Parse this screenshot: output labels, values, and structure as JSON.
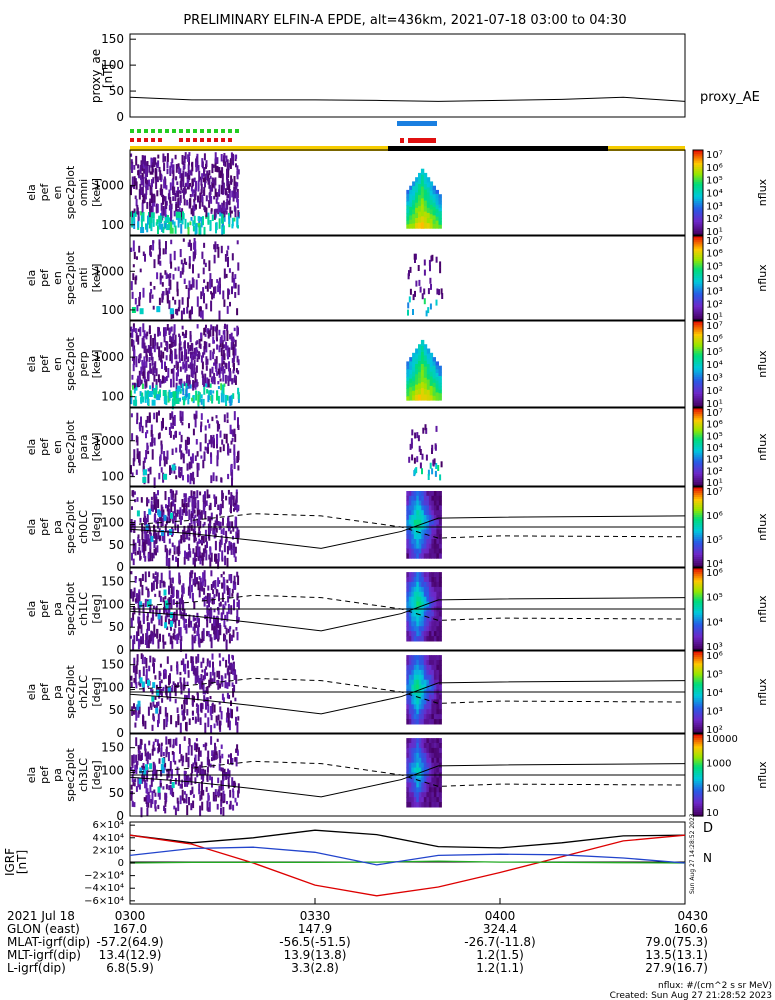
{
  "title": "PRELIMINARY ELFIN-A EPDE, alt=436km, 2021-07-18 03:00 to 04:30",
  "colors": {
    "ae_line": "#000000",
    "green_bar": "#22cc22",
    "red_bar": "#e01010",
    "blue_bar": "#1a7fe0",
    "status_yellow": "#f5cc00",
    "status_black": "#000000",
    "igrf_d": "#dd0000",
    "igrf_n": "#22aa22",
    "igrf_e": "#2244cc",
    "igrf_total": "#000000"
  },
  "chart_data": {
    "type": "heatmap",
    "time_range_min": [
      0,
      90
    ],
    "panels": [
      {
        "id": "proxy_ae",
        "kind": "line",
        "ylabel": [
          "proxy_ae",
          "[nT]"
        ],
        "side_label": "proxy_AE",
        "yticks": [
          "150",
          "100",
          "50",
          "0"
        ],
        "ylim": [
          0,
          160
        ],
        "x_min": [
          0,
          10,
          20,
          30,
          40,
          50,
          60,
          70,
          80,
          90
        ],
        "y_nT": [
          38,
          33,
          33,
          33,
          32,
          30,
          32,
          34,
          38,
          30
        ]
      },
      {
        "id": "omni",
        "kind": "spec_energy",
        "ylabel": [
          "ela",
          "pef",
          "en",
          "spec2plot",
          "omni",
          "[keV]"
        ],
        "yticks": [
          "1000",
          "100"
        ],
        "cbar_ticks": [
          "10⁷",
          "10⁶",
          "10⁵",
          "10⁴",
          "10³",
          "10²",
          "10¹"
        ],
        "cbar_label": "nflux"
      },
      {
        "id": "anti",
        "kind": "spec_energy",
        "ylabel": [
          "ela",
          "pef",
          "en",
          "spec2plot",
          "anti",
          "[keV]"
        ],
        "yticks": [
          "1000",
          "100"
        ],
        "cbar_ticks": [
          "10⁷",
          "10⁶",
          "10⁵",
          "10⁴",
          "10³",
          "10²",
          "10¹"
        ],
        "cbar_label": "nflux"
      },
      {
        "id": "perp",
        "kind": "spec_energy",
        "ylabel": [
          "ela",
          "pef",
          "en",
          "spec2plot",
          "perp",
          "[keV]"
        ],
        "yticks": [
          "1000",
          "100"
        ],
        "cbar_ticks": [
          "10⁷",
          "10⁶",
          "10⁵",
          "10⁴",
          "10³",
          "10²",
          "10¹"
        ],
        "cbar_label": "nflux"
      },
      {
        "id": "para",
        "kind": "spec_energy",
        "ylabel": [
          "ela",
          "pef",
          "en",
          "spec2plot",
          "para",
          "[keV]"
        ],
        "yticks": [
          "1000",
          "100"
        ],
        "cbar_ticks": [
          "10⁷",
          "10⁶",
          "10⁵",
          "10⁴",
          "10³",
          "10²",
          "10¹"
        ],
        "cbar_label": "nflux"
      },
      {
        "id": "ch0LC",
        "kind": "spec_pa",
        "ylabel": [
          "ela",
          "pef",
          "pa",
          "spec2plot",
          "ch0LC",
          "[deg]"
        ],
        "yticks": [
          "150",
          "100",
          "50",
          "0"
        ],
        "cbar_ticks": [
          "10⁷",
          "10⁶",
          "10⁵",
          "10⁴"
        ],
        "cbar_label": "nflux"
      },
      {
        "id": "ch1LC",
        "kind": "spec_pa",
        "ylabel": [
          "ela",
          "pef",
          "pa",
          "spec2plot",
          "ch1LC",
          "[deg]"
        ],
        "yticks": [
          "150",
          "100",
          "50",
          "0"
        ],
        "cbar_ticks": [
          "10⁶",
          "10⁵",
          "10⁴",
          "10³"
        ],
        "cbar_label": "nflux"
      },
      {
        "id": "ch2LC",
        "kind": "spec_pa",
        "ylabel": [
          "ela",
          "pef",
          "pa",
          "spec2plot",
          "ch2LC",
          "[deg]"
        ],
        "yticks": [
          "150",
          "100",
          "50",
          "0"
        ],
        "cbar_ticks": [
          "10⁶",
          "10⁵",
          "10⁴",
          "10³",
          "10²"
        ],
        "cbar_label": "nflux"
      },
      {
        "id": "ch3LC",
        "kind": "spec_pa",
        "ylabel": [
          "ela",
          "pef",
          "pa",
          "spec2plot",
          "ch3LC",
          "[deg]"
        ],
        "yticks": [
          "150",
          "100",
          "50",
          "0"
        ],
        "cbar_ticks": [
          "10000",
          "1000",
          "100",
          "10"
        ],
        "cbar_label": "nflux"
      },
      {
        "id": "igrf",
        "kind": "line",
        "ylabel": [
          "IGRF",
          "[nT]"
        ],
        "yticks": [
          "6×10⁴",
          "4×10⁴",
          "2×10⁴",
          "0",
          "−2×10⁴",
          "−4×10⁴",
          "−6×10⁴"
        ],
        "ylim": [
          -65000,
          65000
        ],
        "legend": [
          "D",
          "N"
        ],
        "x_min": [
          0,
          10,
          20,
          30,
          40,
          50,
          60,
          70,
          80,
          90
        ],
        "series": [
          {
            "key": "total",
            "values": [
              44000,
              32000,
              40000,
              52000,
              45000,
              26000,
              24000,
              32000,
              43000,
              44000
            ]
          },
          {
            "key": "d",
            "values": [
              44000,
              30000,
              0,
              -35000,
              -52000,
              -38000,
              -15000,
              10000,
              35000,
              44000
            ]
          },
          {
            "key": "n",
            "values": [
              0,
              1000,
              1000,
              1000,
              1500,
              3000,
              1500,
              1000,
              500,
              0
            ]
          },
          {
            "key": "e",
            "values": [
              12000,
              23000,
              25000,
              17000,
              -3000,
              12000,
              14000,
              13000,
              8000,
              0
            ]
          }
        ]
      }
    ],
    "orbit_table": {
      "rows": [
        {
          "label": "2021 Jul 18",
          "values": [
            "0300",
            "0330",
            "0400",
            "0430"
          ]
        },
        {
          "label": "GLON (east)",
          "values": [
            "167.0",
            "147.9",
            "324.4",
            "160.6"
          ]
        },
        {
          "label": "MLAT-igrf(dip)",
          "values": [
            "-57.2(64.9)",
            "-56.5(-51.5)",
            "-26.7(-11.8)",
            "79.0(75.3)"
          ]
        },
        {
          "label": "MLT-igrf(dip)",
          "values": [
            "13.4(12.9)",
            "13.9(13.8)",
            "1.2(1.5)",
            "13.5(13.1)"
          ]
        },
        {
          "label": "L-igrf(dip)",
          "values": [
            "6.8(5.9)",
            "3.3(2.8)",
            "1.2(1.1)",
            "27.9(16.7)"
          ]
        }
      ]
    }
  },
  "footer": {
    "units": "nflux: #/(cm^2 s sr MeV)",
    "created": "Created: Sun Aug 27 21:28:52 2023",
    "side_stamp": "Sun Aug 27 14:28:52 2023"
  }
}
